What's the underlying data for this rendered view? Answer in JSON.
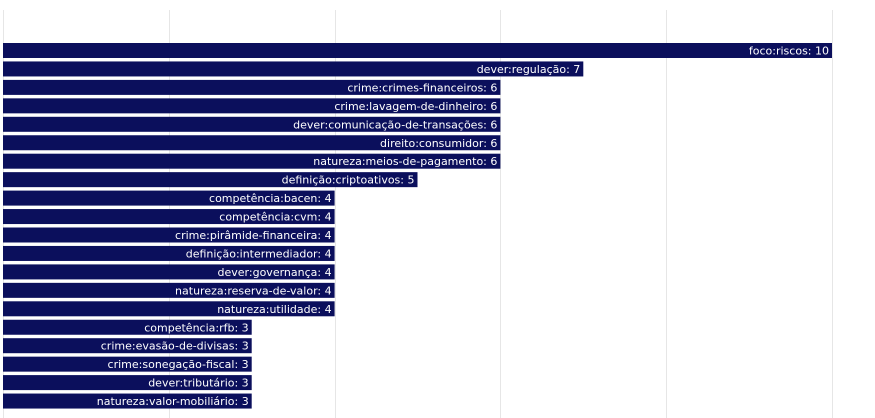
{
  "chart_data": {
    "type": "bar",
    "orientation": "horizontal",
    "categories": [
      "foco:riscos",
      "dever:regulação",
      "crime:crimes-financeiros",
      "crime:lavagem-de-dinheiro",
      "dever:comunicação-de-transações",
      "direito:consumidor",
      "natureza:meios-de-pagamento",
      "definição:criptoativos",
      "competência:bacen",
      "competência:cvm",
      "crime:pirâmide-financeira",
      "definição:intermediador",
      "dever:governança",
      "natureza:reserva-de-valor",
      "natureza:utilidade",
      "competência:rfb",
      "crime:evasão-de-divisas",
      "crime:sonegação-fiscal",
      "dever:tributário",
      "natureza:valor-mobiliário"
    ],
    "values": [
      10,
      7,
      6,
      6,
      6,
      6,
      6,
      5,
      4,
      4,
      4,
      4,
      4,
      4,
      4,
      3,
      3,
      3,
      3,
      3
    ],
    "labels": [
      "foco:riscos: 10",
      "dever:regulação: 7",
      "crime:crimes-financeiros: 6",
      "crime:lavagem-de-dinheiro: 6",
      "dever:comunicação-de-transações: 6",
      "direito:consumidor: 6",
      "natureza:meios-de-pagamento: 6",
      "definição:criptoativos: 5",
      "competência:bacen: 4",
      "competência:cvm: 4",
      "crime:pirâmide-financeira: 4",
      "definição:intermediador: 4",
      "dever:governança: 4",
      "natureza:reserva-de-valor: 4",
      "natureza:utilidade: 4",
      "competência:rfb: 3",
      "crime:evasão-de-divisas: 3",
      "crime:sonegação-fiscal: 3",
      "dever:tributário: 3",
      "natureza:valor-mobiliário: 3"
    ],
    "xlim": [
      0,
      10
    ],
    "grid": true,
    "bar_color": "#0b0f5c",
    "label_color": "#ffffff",
    "grid_color": "#e6e6e6"
  }
}
